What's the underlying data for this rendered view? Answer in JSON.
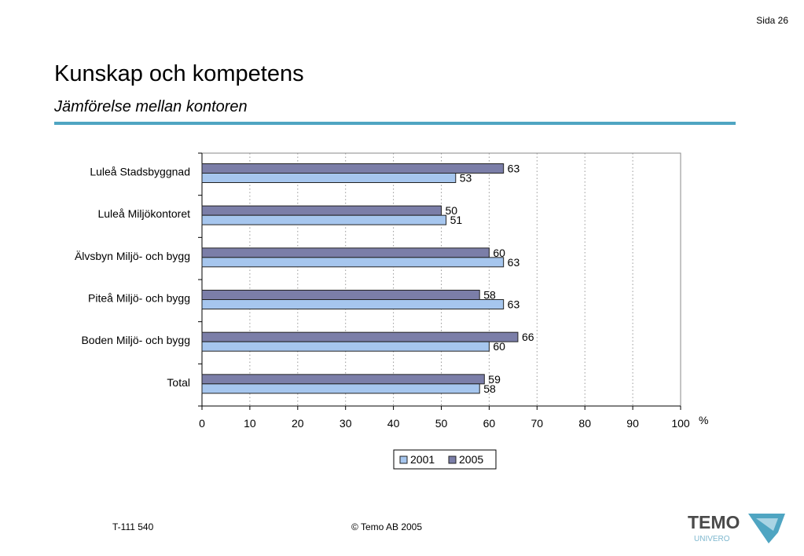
{
  "page": {
    "number": "Sida 26",
    "title": "Kunskap och kompetens",
    "subtitle": "Jämförelse mellan kontoren"
  },
  "footer": {
    "code": "T-111 540",
    "copyright": "©  Temo AB 2005"
  },
  "logo": {
    "text": "TEMO",
    "subtext": "UNIVERO"
  },
  "colors": {
    "rule": "#4fa5c2",
    "s2001": "#a6c6ee",
    "s2005": "#7b7ea8"
  },
  "chart_data": {
    "type": "bar",
    "orientation": "horizontal",
    "categories": [
      "Luleå Stadsbyggnad",
      "Luleå Miljökontoret",
      "Älvsbyn Miljö- och bygg",
      "Piteå Miljö- och bygg",
      "Boden Miljö- och bygg",
      "Total"
    ],
    "series": [
      {
        "name": "2005",
        "values": [
          63,
          50,
          60,
          58,
          66,
          59
        ]
      },
      {
        "name": "2001",
        "values": [
          53,
          51,
          63,
          63,
          60,
          58
        ]
      }
    ],
    "xlim": [
      0,
      100
    ],
    "xticks": [
      0,
      10,
      20,
      30,
      40,
      50,
      60,
      70,
      80,
      90,
      100
    ],
    "unit": "%",
    "grid": "vertical dotted",
    "legend": {
      "position": "bottom",
      "entries": [
        "2001",
        "2005"
      ]
    }
  }
}
